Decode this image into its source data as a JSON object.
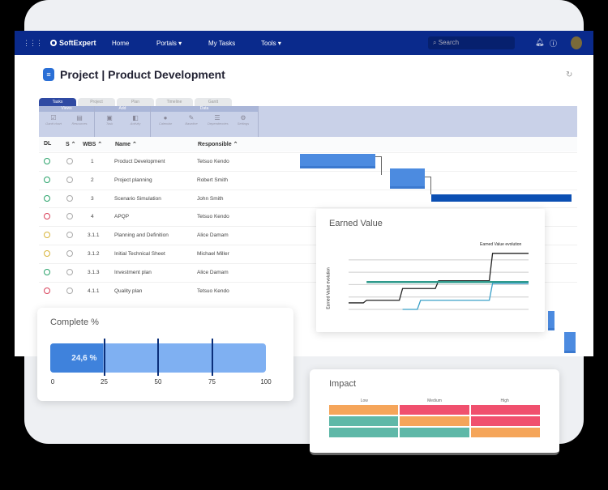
{
  "nav": {
    "brand": "SoftExpert",
    "items": [
      "Home",
      "Portals ▾",
      "My Tasks",
      "Tools ▾"
    ],
    "search_placeholder": "Search",
    "accent": "#0a2a8c"
  },
  "page": {
    "title": "Project | Product Development"
  },
  "ribbon": {
    "tabs": [
      "Tasks",
      "Project",
      "Plan",
      "Timeline",
      "Gantt"
    ],
    "groups": [
      {
        "label": "Views",
        "buttons": [
          "Gantt chart",
          "Resources"
        ]
      },
      {
        "label": "Add",
        "buttons": [
          "Task",
          "Activity"
        ]
      },
      {
        "label": "Data",
        "buttons": [
          "Calendar",
          "Baseline",
          "Dependencies",
          "Settings"
        ]
      }
    ]
  },
  "table": {
    "columns": [
      "DL",
      "S ⌃",
      "WBS ⌃",
      "Name ⌃",
      "Responsible ⌃"
    ],
    "rows": [
      {
        "dl": "green",
        "wbs": "1",
        "name": "Product Development",
        "responsible": "Tetsuo Kendo"
      },
      {
        "dl": "green",
        "wbs": "2",
        "name": "Project planning",
        "responsible": "Robert Smith"
      },
      {
        "dl": "green",
        "wbs": "3",
        "name": "Scenario Simulation",
        "responsible": "John Smith"
      },
      {
        "dl": "red",
        "wbs": "4",
        "name": "APQP",
        "responsible": "Tetsuo Kendo"
      },
      {
        "dl": "yellow",
        "wbs": "3.1.1",
        "name": "Planning and Definition",
        "responsible": "Alice Damam"
      },
      {
        "dl": "yellow",
        "wbs": "3.1.2",
        "name": "Initial Technical Sheet",
        "responsible": "Michael Miller"
      },
      {
        "dl": "green",
        "wbs": "3.1.3",
        "name": "Investment plan",
        "responsible": "Alice Damam"
      },
      {
        "dl": "red",
        "wbs": "4.1.1",
        "name": "Quality plan",
        "responsible": "Tetsuo Kendo"
      }
    ],
    "status_colors": {
      "green": "#2aa36b",
      "red": "#d9415a",
      "yellow": "#d8b43a"
    }
  },
  "complete": {
    "title": "Complete %",
    "value": 24.6,
    "value_label": "24,6 %",
    "ticks": [
      "0",
      "25",
      "50",
      "75",
      "100"
    ]
  },
  "earned_value": {
    "title": "Earned Value",
    "legend": "Earned Value evolution",
    "ylabel": "Earned Value evolution"
  },
  "impact": {
    "title": "Impact",
    "columns": [
      "Low",
      "Medium",
      "High"
    ],
    "cells": [
      [
        "#f5a55a",
        "#f0506e",
        "#f0506e"
      ],
      [
        "#5fb8a8",
        "#f5a55a",
        "#f0506e"
      ],
      [
        "#5fb8a8",
        "#5fb8a8",
        "#f5a55a"
      ]
    ]
  },
  "chart_data": {
    "type": "line",
    "title": "Earned Value",
    "ylabel": "Earned Value evolution",
    "x": [
      0,
      1,
      2,
      3,
      4,
      5,
      6,
      7,
      8,
      9,
      10
    ],
    "series": [
      {
        "name": "Earned Value evolution",
        "color": "#222",
        "values": [
          0.5,
          0.7,
          0.7,
          1.6,
          1.6,
          2.2,
          2.2,
          2.2,
          4.3,
          4.3,
          4.3
        ]
      },
      {
        "color": "#2f9a8c",
        "values": [
          null,
          2.1,
          2.1,
          2.1,
          2.1,
          2.1,
          2.1,
          2.1,
          2.1,
          2.1,
          2.1
        ]
      },
      {
        "color": "#3aa0c8",
        "values": [
          null,
          null,
          null,
          0,
          0.7,
          0.7,
          0.7,
          0.7,
          2.0,
          2.0,
          2.0
        ]
      }
    ],
    "grid": true
  }
}
